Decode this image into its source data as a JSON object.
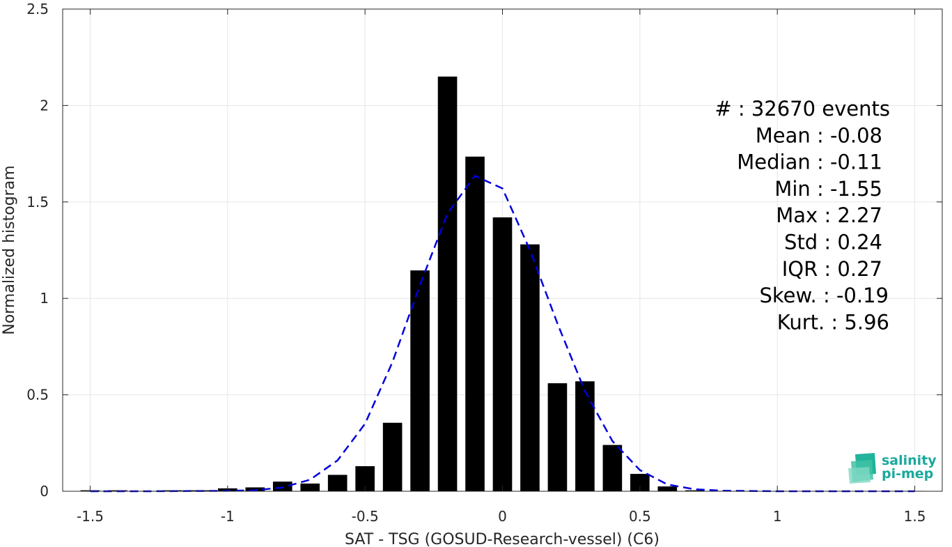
{
  "chart_data": {
    "type": "bar",
    "xlabel": "SAT - TSG (GOSUD-Research-vessel) (C6)",
    "ylabel": "Normalized histogram",
    "xlim": [
      -1.6,
      1.6
    ],
    "ylim": [
      0,
      2.5
    ],
    "xticks": [
      -1.5,
      -1,
      -0.5,
      0,
      0.5,
      1,
      1.5
    ],
    "xtick_labels": [
      "-1.5",
      "-1",
      "-0.5",
      "0",
      "0.5",
      "1",
      "1.5"
    ],
    "yticks": [
      0,
      0.5,
      1,
      1.5,
      2,
      2.5
    ],
    "ytick_labels": [
      "0",
      "0.5",
      "1",
      "1.5",
      "2",
      "2.5"
    ],
    "grid": true,
    "bin_width": 0.1,
    "bar_color": "#000000",
    "bins": [
      {
        "x": -1.5,
        "value": 0.005
      },
      {
        "x": -1.4,
        "value": 0.005
      },
      {
        "x": -1.3,
        "value": 0.002
      },
      {
        "x": -1.2,
        "value": 0.005
      },
      {
        "x": -1.1,
        "value": 0.005
      },
      {
        "x": -1.0,
        "value": 0.015
      },
      {
        "x": -0.9,
        "value": 0.02
      },
      {
        "x": -0.8,
        "value": 0.05
      },
      {
        "x": -0.7,
        "value": 0.04
      },
      {
        "x": -0.6,
        "value": 0.085
      },
      {
        "x": -0.5,
        "value": 0.13
      },
      {
        "x": -0.4,
        "value": 0.355
      },
      {
        "x": -0.3,
        "value": 1.145
      },
      {
        "x": -0.2,
        "value": 2.15
      },
      {
        "x": -0.1,
        "value": 1.735
      },
      {
        "x": 0.0,
        "value": 1.42
      },
      {
        "x": 0.1,
        "value": 1.28
      },
      {
        "x": 0.2,
        "value": 0.56
      },
      {
        "x": 0.3,
        "value": 0.57
      },
      {
        "x": 0.4,
        "value": 0.24
      },
      {
        "x": 0.5,
        "value": 0.09
      },
      {
        "x": 0.6,
        "value": 0.025
      },
      {
        "x": 0.7,
        "value": 0.005
      },
      {
        "x": 0.8,
        "value": 0.002
      },
      {
        "x": 0.9,
        "value": 0.002
      },
      {
        "x": 1.0,
        "value": 0.0
      },
      {
        "x": 1.1,
        "value": 0.0
      },
      {
        "x": 1.2,
        "value": 0.0
      },
      {
        "x": 1.3,
        "value": 0.0
      },
      {
        "x": 1.4,
        "value": 0.0
      },
      {
        "x": 1.5,
        "value": 0.002
      }
    ],
    "fit_curve": {
      "style": "dashed",
      "color": "#0000dd",
      "points": [
        [
          -1.5,
          0.0
        ],
        [
          -1.3,
          0.0
        ],
        [
          -1.0,
          0.002
        ],
        [
          -0.9,
          0.005
        ],
        [
          -0.8,
          0.02
        ],
        [
          -0.7,
          0.06
        ],
        [
          -0.6,
          0.16
        ],
        [
          -0.5,
          0.35
        ],
        [
          -0.4,
          0.67
        ],
        [
          -0.3,
          1.07
        ],
        [
          -0.2,
          1.44
        ],
        [
          -0.1,
          1.635
        ],
        [
          0.0,
          1.57
        ],
        [
          0.1,
          1.25
        ],
        [
          0.2,
          0.87
        ],
        [
          0.3,
          0.52
        ],
        [
          0.4,
          0.26
        ],
        [
          0.5,
          0.11
        ],
        [
          0.6,
          0.035
        ],
        [
          0.7,
          0.01
        ],
        [
          0.8,
          0.003
        ],
        [
          1.0,
          0.0
        ],
        [
          1.2,
          0.0
        ],
        [
          1.5,
          0.0
        ]
      ]
    },
    "stats": [
      "#  : 32670 events",
      "Mean : -0.08",
      "Median : -0.11",
      "Min : -1.55",
      "Max : 2.27",
      "Std : 0.24",
      "IQR : 0.27",
      "Skew. : -0.19",
      "Kurt. : 5.96"
    ]
  },
  "logo": {
    "line1": "salinity",
    "line2": "pi-mep",
    "color": "#1aa99c"
  }
}
